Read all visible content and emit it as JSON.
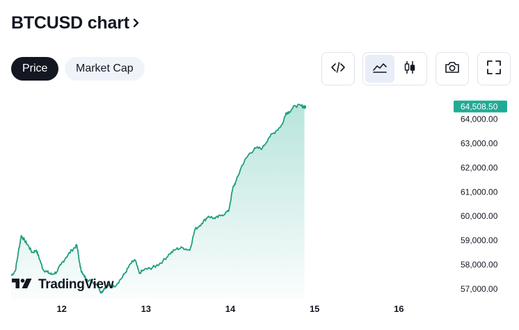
{
  "header": {
    "title": "BTCUSD chart"
  },
  "tabs": [
    {
      "label": "Price",
      "active": true
    },
    {
      "label": "Market Cap",
      "active": false
    }
  ],
  "toolbar": {
    "embed_icon": "code-icon",
    "area_icon": "area-chart-icon",
    "candle_icon": "candlestick-icon",
    "camera_icon": "camera-icon",
    "fullscreen_icon": "fullscreen-icon"
  },
  "logo": {
    "text": "TradingView"
  },
  "colors": {
    "line": "#1f9e7e",
    "price_tag": "#22ab94",
    "dark": "#131722"
  },
  "chart_data": {
    "type": "area",
    "title": "",
    "xlabel": "",
    "ylabel": "",
    "x_ticks": [
      "12",
      "13",
      "14",
      "15",
      "16"
    ],
    "y_ticks": [
      "57,000.00",
      "58,000.00",
      "59,000.00",
      "60,000.00",
      "61,000.00",
      "62,000.00",
      "63,000.00",
      "64,000.00"
    ],
    "ylim": [
      56600,
      64900
    ],
    "xlim": [
      11.4,
      16.6
    ],
    "last_price": "64,508.50",
    "series": [
      {
        "values": [
          [
            11.4,
            57550
          ],
          [
            11.45,
            57750
          ],
          [
            11.49,
            58600
          ],
          [
            11.52,
            59200
          ],
          [
            11.56,
            59000
          ],
          [
            11.6,
            58800
          ],
          [
            11.65,
            58500
          ],
          [
            11.7,
            58600
          ],
          [
            11.74,
            58200
          ],
          [
            11.78,
            57800
          ],
          [
            11.83,
            57700
          ],
          [
            11.88,
            57600
          ],
          [
            11.94,
            57700
          ],
          [
            11.99,
            58000
          ],
          [
            12.05,
            58300
          ],
          [
            12.12,
            58600
          ],
          [
            12.18,
            58800
          ],
          [
            12.22,
            57900
          ],
          [
            12.25,
            57600
          ],
          [
            12.3,
            57400
          ],
          [
            12.36,
            57300
          ],
          [
            12.42,
            57200
          ],
          [
            12.47,
            56850
          ],
          [
            12.51,
            57050
          ],
          [
            12.56,
            57150
          ],
          [
            12.62,
            57100
          ],
          [
            12.7,
            57400
          ],
          [
            12.76,
            57700
          ],
          [
            12.82,
            58050
          ],
          [
            12.87,
            58200
          ],
          [
            12.92,
            57650
          ],
          [
            12.98,
            57800
          ],
          [
            13.05,
            57850
          ],
          [
            13.12,
            57950
          ],
          [
            13.2,
            58150
          ],
          [
            13.28,
            58450
          ],
          [
            13.36,
            58650
          ],
          [
            13.44,
            58700
          ],
          [
            13.52,
            58600
          ],
          [
            13.58,
            59450
          ],
          [
            13.66,
            59700
          ],
          [
            13.74,
            60000
          ],
          [
            13.82,
            59900
          ],
          [
            13.9,
            60050
          ],
          [
            13.98,
            60200
          ],
          [
            14.03,
            61150
          ],
          [
            14.07,
            61450
          ],
          [
            14.14,
            62100
          ],
          [
            14.22,
            62550
          ],
          [
            14.3,
            62800
          ],
          [
            14.38,
            62800
          ],
          [
            14.46,
            63250
          ],
          [
            14.54,
            63500
          ],
          [
            14.62,
            63800
          ],
          [
            14.66,
            64250
          ],
          [
            14.7,
            64300
          ],
          [
            14.77,
            64550
          ],
          [
            14.84,
            64550
          ],
          [
            14.88,
            64500
          ]
        ]
      }
    ]
  }
}
